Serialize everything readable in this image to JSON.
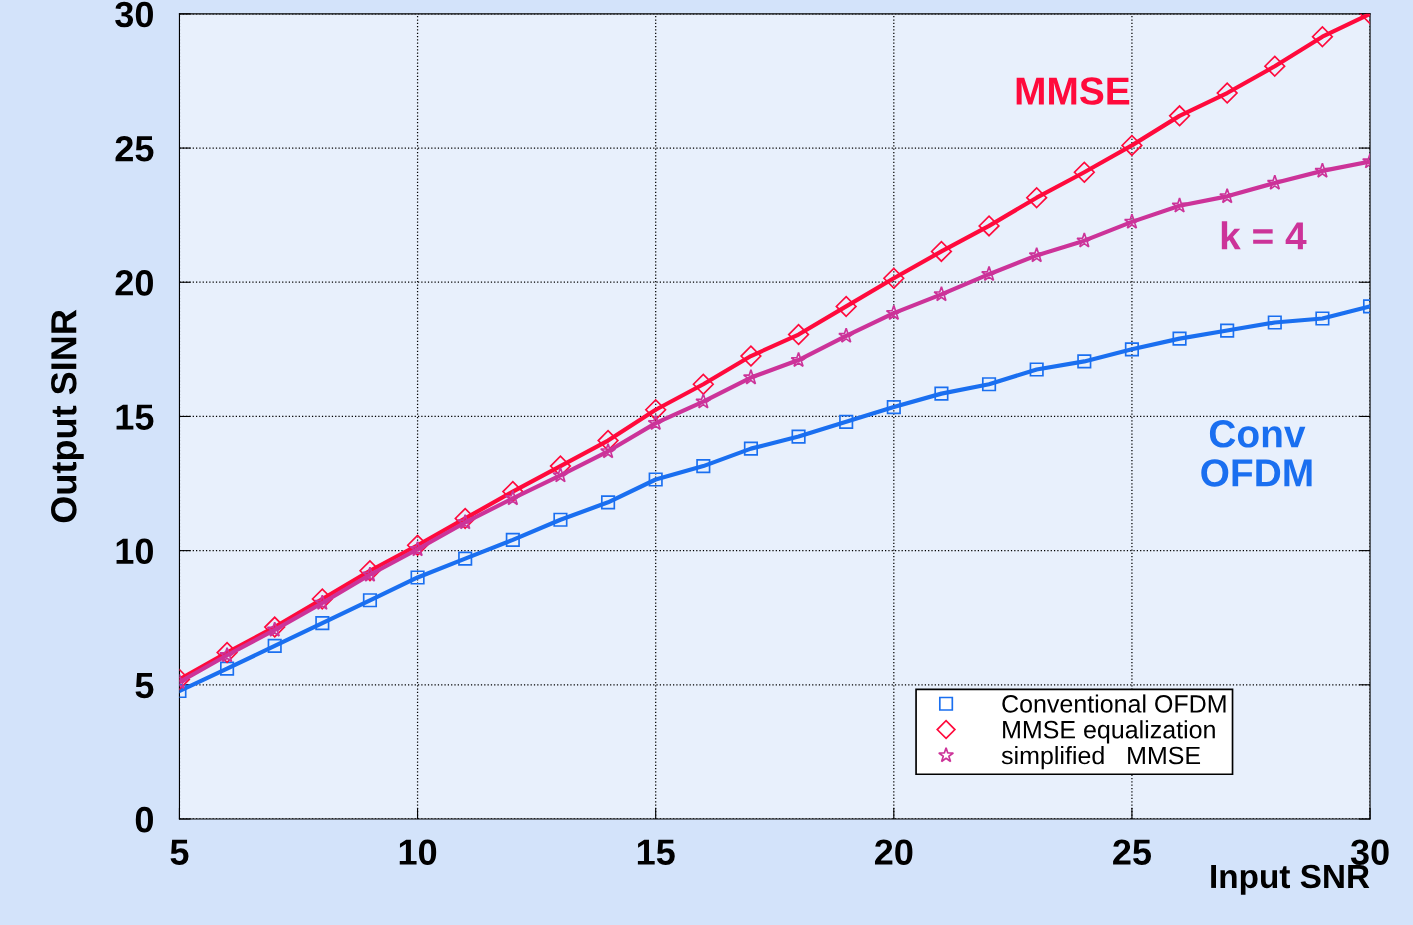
{
  "chart_data": {
    "type": "line",
    "xlabel": "Input SNR",
    "ylabel": "Output SINR",
    "x": [
      5,
      6,
      7,
      8,
      9,
      10,
      11,
      12,
      13,
      14,
      15,
      16,
      17,
      18,
      19,
      20,
      21,
      22,
      23,
      24,
      25,
      26,
      27,
      28,
      29,
      30
    ],
    "series": [
      {
        "name": "Conventional OFDM",
        "color": "#1a6ff0",
        "marker": "square",
        "values": [
          4.77,
          5.6,
          6.45,
          7.3,
          8.15,
          9.0,
          9.7,
          10.4,
          11.15,
          11.8,
          12.65,
          13.15,
          13.8,
          14.25,
          14.8,
          15.35,
          15.85,
          16.2,
          16.75,
          17.05,
          17.5,
          17.9,
          18.2,
          18.5,
          18.65,
          19.1
        ]
      },
      {
        "name": "MMSE equalization",
        "color": "#ff0a3c",
        "marker": "diamond",
        "values": [
          5.2,
          6.2,
          7.15,
          8.2,
          9.25,
          10.2,
          11.2,
          12.2,
          13.15,
          14.1,
          15.25,
          16.2,
          17.25,
          18.05,
          19.1,
          20.15,
          21.15,
          22.1,
          23.15,
          24.1,
          25.1,
          26.2,
          27.05,
          28.05,
          29.15,
          30
        ]
      },
      {
        "name": "simplified   MMSE",
        "color": "#cc3399",
        "marker": "star",
        "values": [
          5.1,
          6.1,
          7.05,
          8.05,
          9.1,
          10.05,
          11.05,
          11.95,
          12.8,
          13.7,
          14.75,
          15.55,
          16.45,
          17.1,
          18.0,
          18.85,
          19.55,
          20.3,
          21.0,
          21.55,
          22.25,
          22.85,
          23.2,
          23.7,
          24.15,
          24.5
        ]
      }
    ],
    "annotations": [
      "Conv\nOFDM",
      "MMSE",
      "k = 4"
    ],
    "xlim": [
      5,
      30
    ],
    "ylim": [
      0,
      30
    ],
    "xticks": [
      5,
      10,
      15,
      20,
      25,
      30
    ],
    "yticks": [
      0,
      5,
      10,
      15,
      20,
      25,
      30
    ],
    "grid": true,
    "legend": "bottom right",
    "line_style": "solid"
  }
}
